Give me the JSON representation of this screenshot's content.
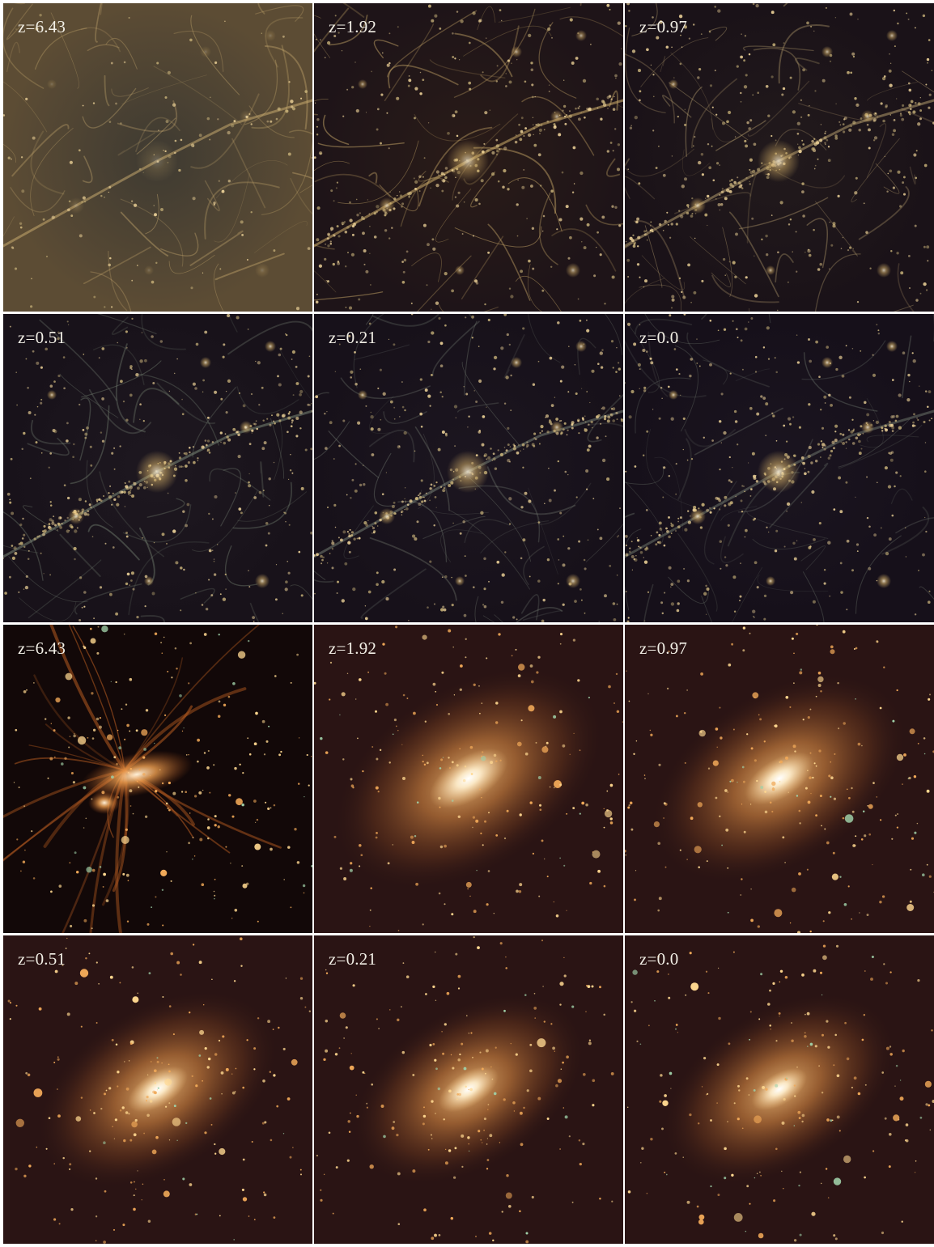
{
  "figure": {
    "cosmic_web": {
      "panels": [
        {
          "label": "z=6.43"
        },
        {
          "label": "z=1.92"
        },
        {
          "label": "z=0.97"
        },
        {
          "label": "z=0.51"
        },
        {
          "label": "z=0.21"
        },
        {
          "label": "z=0.0"
        }
      ]
    },
    "halo_zoom": {
      "panels": [
        {
          "label": "z=6.43"
        },
        {
          "label": "z=1.92"
        },
        {
          "label": "z=0.97"
        },
        {
          "label": "z=0.51"
        },
        {
          "label": "z=0.21"
        },
        {
          "label": "z=0.0"
        }
      ]
    }
  },
  "colors": {
    "web_highz_bg": "#5a4a30",
    "web_bg": "#1c1420",
    "filament": "#c8a060",
    "halo_core": "#fff4e0",
    "halo_glow": "#d08a3a",
    "frame_line": "#ffffff"
  }
}
